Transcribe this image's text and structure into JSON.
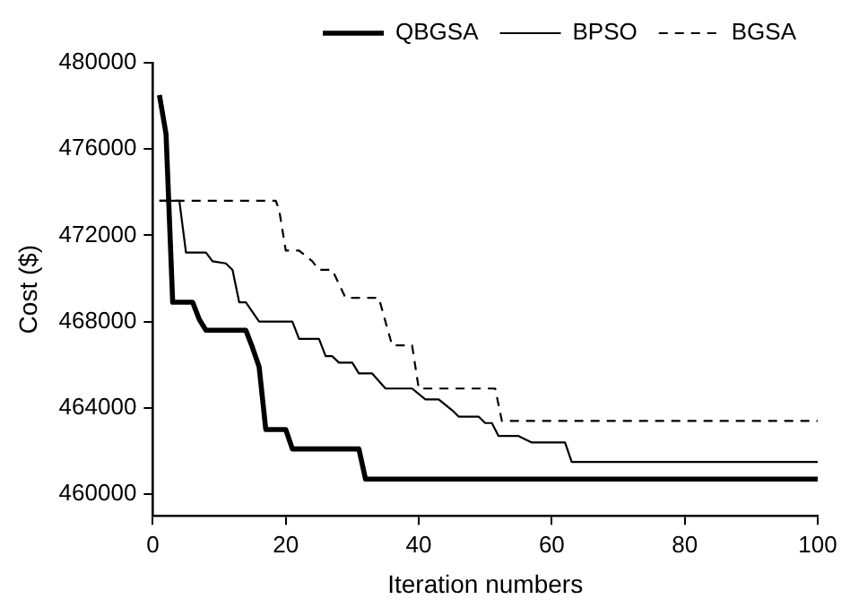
{
  "chart_data": {
    "type": "line",
    "xlabel": "Iteration numbers",
    "ylabel": "Cost ($)",
    "xlim": [
      0,
      100
    ],
    "xticks": [
      0,
      20,
      40,
      60,
      80,
      100
    ],
    "ylim": [
      459000,
      480000
    ],
    "yticks": [
      460000,
      464000,
      468000,
      472000,
      476000,
      480000
    ],
    "grid": false,
    "legend": "top right",
    "marker": "none",
    "series": [
      {
        "name": "QBGSA",
        "color": "#000000",
        "line_style": "solid",
        "x": [
          1,
          2,
          3,
          6,
          7,
          8,
          14,
          15,
          16,
          17,
          20,
          21,
          31,
          32,
          100
        ],
        "values": [
          478500,
          476700,
          468900,
          468900,
          468100,
          467600,
          467600,
          466800,
          465900,
          463000,
          463000,
          462100,
          462100,
          460700,
          460700
        ]
      },
      {
        "name": "BPSO",
        "color": "#000000",
        "line_style": "solid",
        "x": [
          1,
          4,
          5,
          8,
          9,
          11,
          12,
          13,
          14,
          16,
          21,
          22,
          25,
          26,
          27,
          28,
          30,
          31,
          33,
          35,
          39,
          41,
          43,
          45,
          46,
          49,
          50,
          51,
          52,
          55,
          57,
          62,
          63,
          100
        ],
        "values": [
          473600,
          473600,
          471200,
          471200,
          470800,
          470700,
          470400,
          468900,
          468900,
          468000,
          468000,
          467200,
          467200,
          466400,
          466400,
          466100,
          466100,
          465600,
          465600,
          464900,
          464900,
          464400,
          464400,
          463900,
          463600,
          463600,
          463300,
          463300,
          462700,
          462700,
          462400,
          462400,
          461500,
          461500
        ]
      },
      {
        "name": "BGSA",
        "color": "#000000",
        "line_style": "dashed",
        "x": [
          1,
          18.5,
          19,
          20,
          22,
          24,
          25,
          27,
          29,
          34,
          36,
          39,
          40,
          51.5,
          52.5,
          100
        ],
        "values": [
          473600,
          473600,
          473200,
          471300,
          471300,
          470800,
          470400,
          470400,
          469100,
          469100,
          466900,
          466900,
          464900,
          464900,
          463400,
          463400
        ]
      }
    ]
  }
}
